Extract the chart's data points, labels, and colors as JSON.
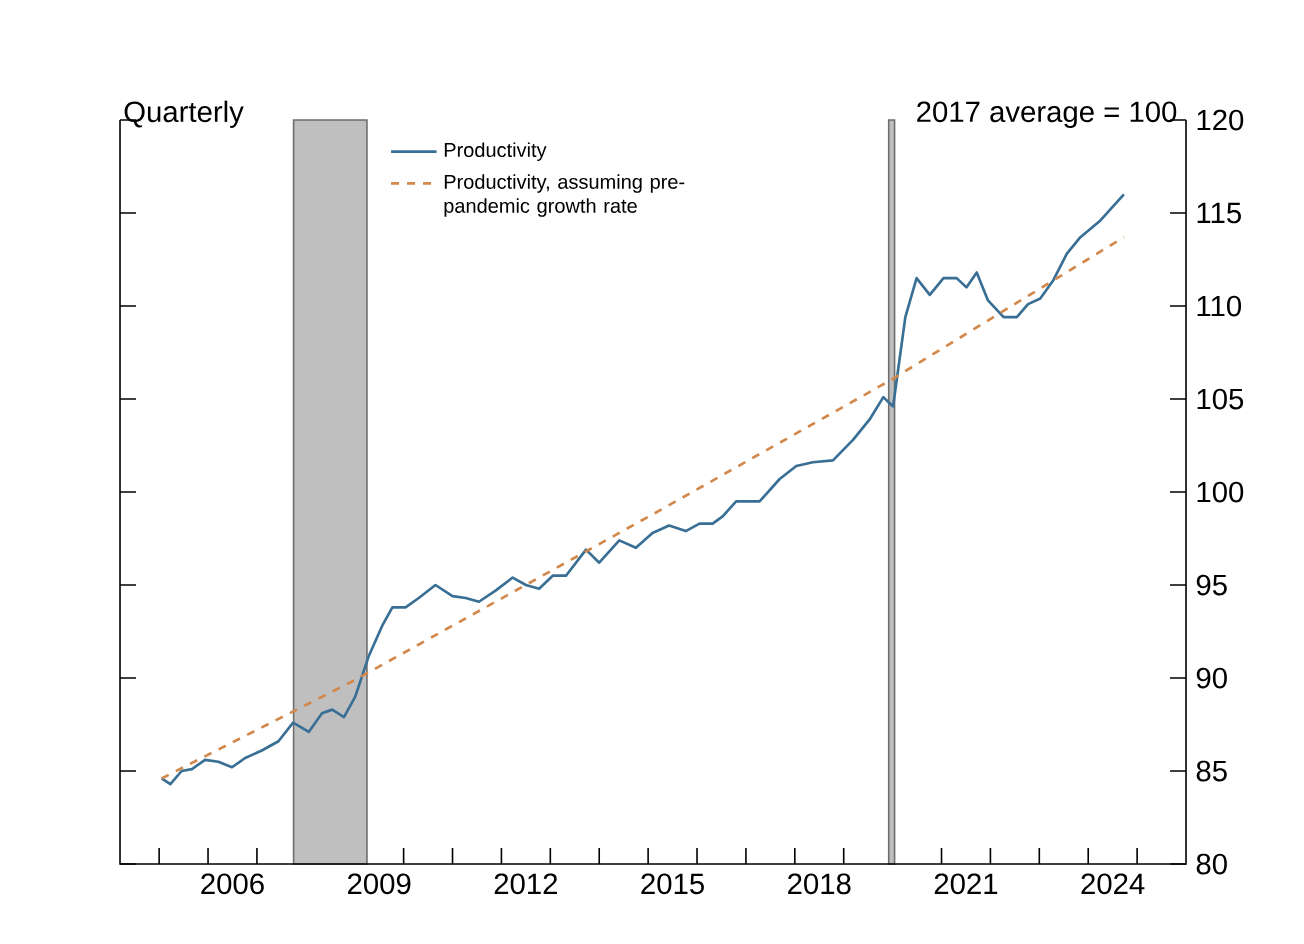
{
  "chart_data": {
    "type": "line",
    "ylabel": "2017 average = 100",
    "annotations": [
      "Quarterly"
    ],
    "xlim": [
      2004.2,
      2026
    ],
    "ylim": [
      80,
      120
    ],
    "xticks": [
      {
        "value": 2005,
        "label": null
      },
      {
        "value": 2006,
        "label": null
      },
      {
        "value": 2007,
        "label": null
      },
      {
        "value": 2008,
        "label": null
      },
      {
        "value": 2009,
        "label": null
      },
      {
        "value": 2010,
        "label": null
      },
      {
        "value": 2011,
        "label": null
      },
      {
        "value": 2012,
        "label": null
      },
      {
        "value": 2013,
        "label": null
      },
      {
        "value": 2014,
        "label": null
      },
      {
        "value": 2015,
        "label": null
      },
      {
        "value": 2016,
        "label": null
      },
      {
        "value": 2017,
        "label": null
      },
      {
        "value": 2018,
        "label": null
      },
      {
        "value": 2019,
        "label": null
      },
      {
        "value": 2020,
        "label": null
      },
      {
        "value": 2021,
        "label": null
      },
      {
        "value": 2022,
        "label": null
      },
      {
        "value": 2023,
        "label": null
      },
      {
        "value": 2024,
        "label": null
      },
      {
        "value": 2025,
        "label": null
      },
      {
        "value": 2006.5,
        "label": "2006"
      },
      {
        "value": 2009.5,
        "label": "2009"
      },
      {
        "value": 2012.5,
        "label": "2012"
      },
      {
        "value": 2015.5,
        "label": "2015"
      },
      {
        "value": 2018.5,
        "label": "2018"
      },
      {
        "value": 2021.5,
        "label": "2021"
      },
      {
        "value": 2024.5,
        "label": "2024"
      }
    ],
    "yticks": [
      80,
      85,
      90,
      95,
      100,
      105,
      110,
      115,
      120
    ],
    "legend": "top left",
    "grid": false,
    "bands": [
      {
        "axis": "x",
        "from": 2007.75,
        "to": 2009.25,
        "color": "#bfbfbf"
      },
      {
        "axis": "x",
        "from": 2019.92,
        "to": 2020.04,
        "color": "#bfbfbf"
      }
    ],
    "series": [
      {
        "name": "Productivity",
        "color": "#3a6f95",
        "line_style": "solid",
        "x": [
          2005.05,
          2005.23,
          2005.46,
          2005.67,
          2005.94,
          2006.21,
          2006.49,
          2006.76,
          2007.1,
          2007.44,
          2007.74,
          2008.06,
          2008.33,
          2008.54,
          2008.78,
          2009.01,
          2009.29,
          2009.56,
          2009.77,
          2010.04,
          2010.31,
          2010.65,
          2011.0,
          2011.27,
          2011.54,
          2011.88,
          2012.23,
          2012.5,
          2012.77,
          2013.05,
          2013.32,
          2013.73,
          2014.0,
          2014.41,
          2014.75,
          2015.09,
          2015.43,
          2015.77,
          2016.05,
          2016.32,
          2016.53,
          2016.8,
          2017.28,
          2017.69,
          2018.03,
          2018.37,
          2018.78,
          2019.19,
          2019.53,
          2019.81,
          2020.01,
          2020.26,
          2020.49,
          2020.76,
          2021.04,
          2021.31,
          2021.51,
          2021.72,
          2021.95,
          2022.27,
          2022.54,
          2022.77,
          2023.02,
          2023.29,
          2023.56,
          2023.84,
          2024.25,
          2024.73
        ],
        "values": [
          84.6,
          84.3,
          85.0,
          85.1,
          85.6,
          85.5,
          85.2,
          85.7,
          86.1,
          86.6,
          87.6,
          87.1,
          88.1,
          88.3,
          87.9,
          89.0,
          91.2,
          92.8,
          93.8,
          93.8,
          94.3,
          95.0,
          94.4,
          94.3,
          94.1,
          94.7,
          95.4,
          95.0,
          94.8,
          95.5,
          95.5,
          96.9,
          96.2,
          97.4,
          97.0,
          97.8,
          98.2,
          97.9,
          98.3,
          98.3,
          98.7,
          99.5,
          99.5,
          100.7,
          101.4,
          101.6,
          101.7,
          102.8,
          103.9,
          105.1,
          104.6,
          109.4,
          111.5,
          110.6,
          111.5,
          111.5,
          111.0,
          111.8,
          110.3,
          109.4,
          109.4,
          110.1,
          110.4,
          111.4,
          112.8,
          113.7,
          114.6,
          116.0
        ]
      },
      {
        "name": "Productivity, assuming pre-pandemic growth rate",
        "color": "#d2884a",
        "line_style": "dashed",
        "x": [
          2005.05,
          2009.01,
          2015.23,
          2019.95,
          2024.73
        ],
        "values": [
          84.6,
          89.9,
          99.0,
          106.0,
          113.7
        ]
      }
    ]
  }
}
